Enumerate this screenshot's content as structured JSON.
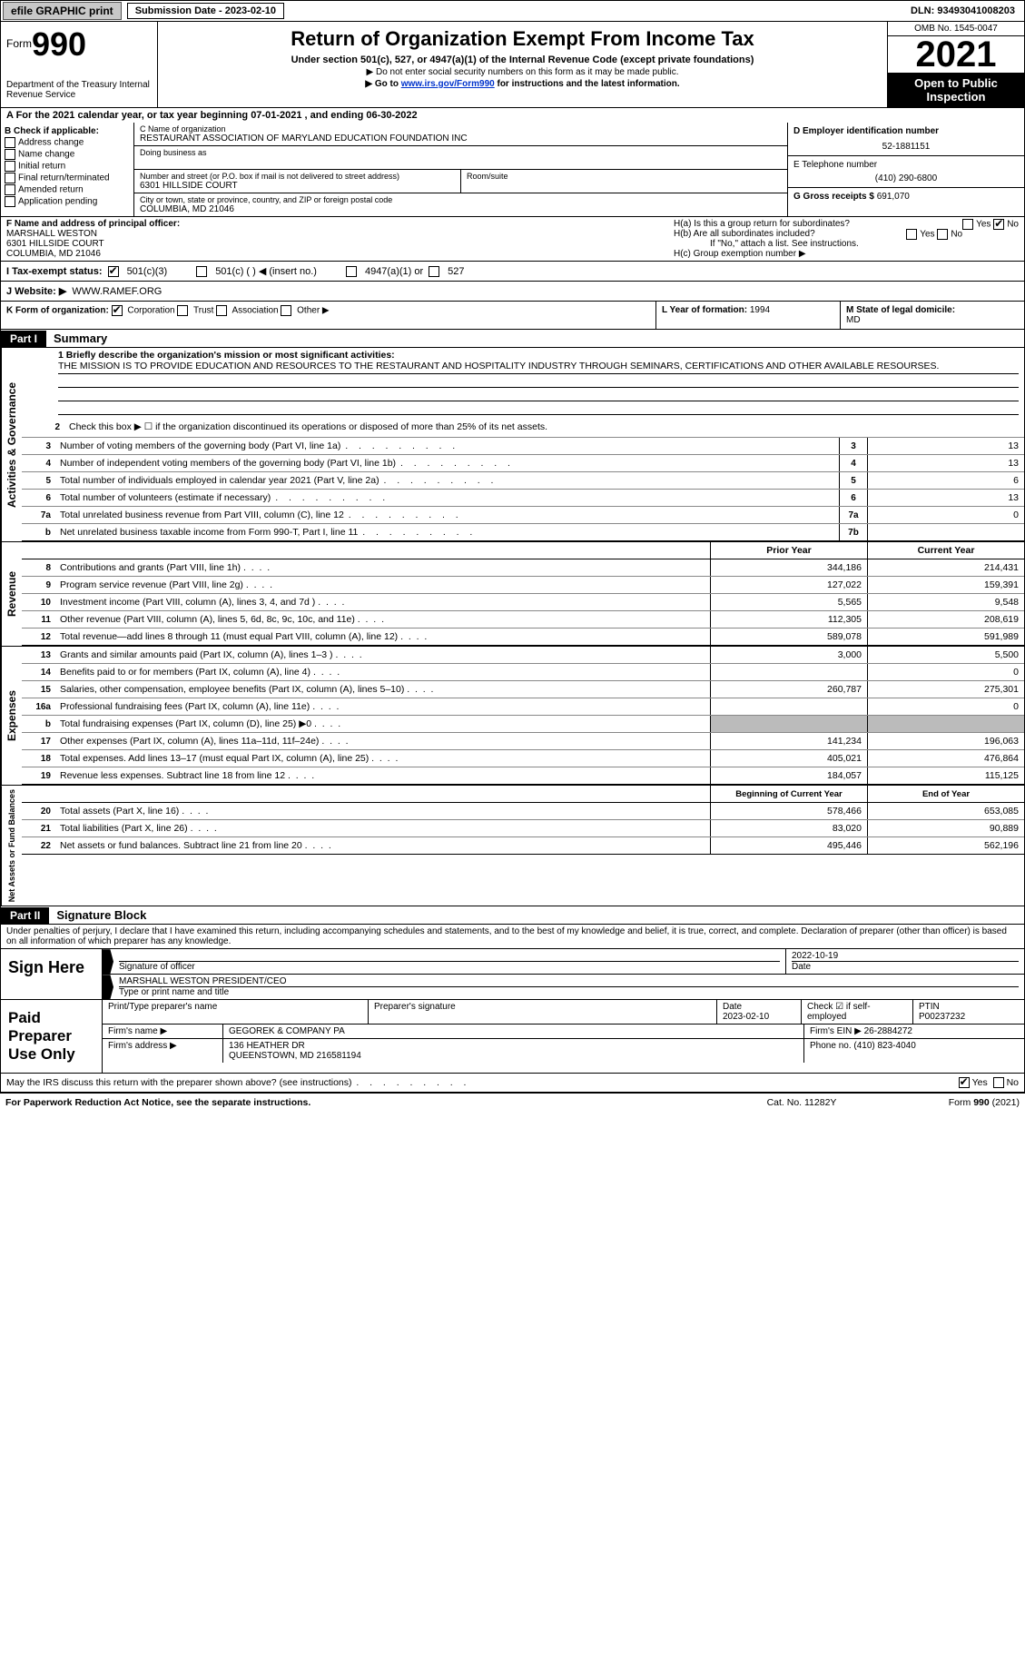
{
  "topbar": {
    "efile": "efile GRAPHIC print",
    "submission_label": "Submission Date - 2023-02-10",
    "dln": "DLN: 93493041008203"
  },
  "header": {
    "form_prefix": "Form",
    "form_num": "990",
    "dept": "Department of the Treasury\nInternal Revenue Service",
    "title": "Return of Organization Exempt From Income Tax",
    "sub1": "Under section 501(c), 527, or 4947(a)(1) of the Internal Revenue Code (except private foundations)",
    "sub2": "▶ Do not enter social security numbers on this form as it may be made public.",
    "sub3_pre": "▶ Go to ",
    "sub3_link": "www.irs.gov/Form990",
    "sub3_post": " for instructions and the latest information.",
    "omb": "OMB No. 1545-0047",
    "year": "2021",
    "open": "Open to Public Inspection"
  },
  "row_a": "A For the 2021 calendar year, or tax year beginning 07-01-2021   , and ending 06-30-2022",
  "section_b": {
    "label": "B Check if applicable:",
    "items": [
      "Address change",
      "Name change",
      "Initial return",
      "Final return/terminated",
      "Amended return",
      "Application pending"
    ]
  },
  "section_c": {
    "name_lbl": "C Name of organization",
    "name": "RESTAURANT ASSOCIATION OF MARYLAND EDUCATION FOUNDATION INC",
    "dba_lbl": "Doing business as",
    "addr_lbl": "Number and street (or P.O. box if mail is not delivered to street address)",
    "addr": "6301 HILLSIDE COURT",
    "room_lbl": "Room/suite",
    "city_lbl": "City or town, state or province, country, and ZIP or foreign postal code",
    "city": "COLUMBIA, MD  21046"
  },
  "section_d": {
    "ein_lbl": "D Employer identification number",
    "ein": "52-1881151",
    "tel_lbl": "E Telephone number",
    "tel": "(410) 290-6800",
    "gross_lbl": "G Gross receipts $",
    "gross": "691,070"
  },
  "section_f": {
    "lbl": "F  Name and address of principal officer:",
    "name": "MARSHALL WESTON",
    "addr1": "6301 HILLSIDE COURT",
    "addr2": "COLUMBIA, MD  21046"
  },
  "section_h": {
    "ha": "H(a)  Is this a group return for subordinates?",
    "hb": "H(b)  Are all subordinates included?",
    "hb_note": "If \"No,\" attach a list. See instructions.",
    "hc": "H(c)  Group exemption number ▶"
  },
  "row_i": {
    "lbl": "I    Tax-exempt status:",
    "opt1": "501(c)(3)",
    "opt2": "501(c) (  ) ◀ (insert no.)",
    "opt3": "4947(a)(1) or",
    "opt4": "527"
  },
  "row_j": {
    "lbl": "J   Website: ▶ ",
    "val": "WWW.RAMEF.ORG"
  },
  "row_k": {
    "lbl": "K Form of organization:",
    "opts": [
      "Corporation",
      "Trust",
      "Association",
      "Other ▶"
    ],
    "l_lbl": "L Year of formation: ",
    "l_val": "1994",
    "m_lbl": "M State of legal domicile: ",
    "m_val": "MD"
  },
  "part1": {
    "hdr": "Part I",
    "title": "Summary",
    "line1_lbl": "1   Briefly describe the organization's mission or most significant activities:",
    "mission": "THE MISSION IS TO PROVIDE EDUCATION AND RESOURCES TO THE RESTAURANT AND HOSPITALITY INDUSTRY THROUGH SEMINARS, CERTIFICATIONS AND OTHER AVAILABLE RESOURSES.",
    "line2": "Check this box ▶ ☐  if the organization discontinued its operations or disposed of more than 25% of its net assets."
  },
  "gov_lines": [
    {
      "n": "3",
      "d": "Number of voting members of the governing body (Part VI, line 1a)",
      "box": "3",
      "v": "13"
    },
    {
      "n": "4",
      "d": "Number of independent voting members of the governing body (Part VI, line 1b)",
      "box": "4",
      "v": "13"
    },
    {
      "n": "5",
      "d": "Total number of individuals employed in calendar year 2021 (Part V, line 2a)",
      "box": "5",
      "v": "6"
    },
    {
      "n": "6",
      "d": "Total number of volunteers (estimate if necessary)",
      "box": "6",
      "v": "13"
    },
    {
      "n": "7a",
      "d": "Total unrelated business revenue from Part VIII, column (C), line 12",
      "box": "7a",
      "v": "0"
    },
    {
      "n": "b",
      "d": "Net unrelated business taxable income from Form 990-T, Part I, line 11",
      "box": "7b",
      "v": ""
    }
  ],
  "columns": {
    "prior": "Prior Year",
    "current": "Current Year"
  },
  "revenue": [
    {
      "n": "8",
      "d": "Contributions and grants (Part VIII, line 1h)",
      "p": "344,186",
      "c": "214,431"
    },
    {
      "n": "9",
      "d": "Program service revenue (Part VIII, line 2g)",
      "p": "127,022",
      "c": "159,391"
    },
    {
      "n": "10",
      "d": "Investment income (Part VIII, column (A), lines 3, 4, and 7d )",
      "p": "5,565",
      "c": "9,548"
    },
    {
      "n": "11",
      "d": "Other revenue (Part VIII, column (A), lines 5, 6d, 8c, 9c, 10c, and 11e)",
      "p": "112,305",
      "c": "208,619"
    },
    {
      "n": "12",
      "d": "Total revenue—add lines 8 through 11 (must equal Part VIII, column (A), line 12)",
      "p": "589,078",
      "c": "591,989"
    }
  ],
  "expenses": [
    {
      "n": "13",
      "d": "Grants and similar amounts paid (Part IX, column (A), lines 1–3 )",
      "p": "3,000",
      "c": "5,500"
    },
    {
      "n": "14",
      "d": "Benefits paid to or for members (Part IX, column (A), line 4)",
      "p": "",
      "c": "0"
    },
    {
      "n": "15",
      "d": "Salaries, other compensation, employee benefits (Part IX, column (A), lines 5–10)",
      "p": "260,787",
      "c": "275,301"
    },
    {
      "n": "16a",
      "d": "Professional fundraising fees (Part IX, column (A), line 11e)",
      "p": "",
      "c": "0"
    },
    {
      "n": "b",
      "d": "Total fundraising expenses (Part IX, column (D), line 25) ▶0",
      "p": "grey",
      "c": "grey"
    },
    {
      "n": "17",
      "d": "Other expenses (Part IX, column (A), lines 11a–11d, 11f–24e)",
      "p": "141,234",
      "c": "196,063"
    },
    {
      "n": "18",
      "d": "Total expenses. Add lines 13–17 (must equal Part IX, column (A), line 25)",
      "p": "405,021",
      "c": "476,864"
    },
    {
      "n": "19",
      "d": "Revenue less expenses. Subtract line 18 from line 12",
      "p": "184,057",
      "c": "115,125"
    }
  ],
  "net_hdr": {
    "prior": "Beginning of Current Year",
    "current": "End of Year"
  },
  "net": [
    {
      "n": "20",
      "d": "Total assets (Part X, line 16)",
      "p": "578,466",
      "c": "653,085"
    },
    {
      "n": "21",
      "d": "Total liabilities (Part X, line 26)",
      "p": "83,020",
      "c": "90,889"
    },
    {
      "n": "22",
      "d": "Net assets or fund balances. Subtract line 21 from line 20",
      "p": "495,446",
      "c": "562,196"
    }
  ],
  "sidelabels": {
    "gov": "Activities & Governance",
    "rev": "Revenue",
    "exp": "Expenses",
    "net": "Net Assets or Fund Balances"
  },
  "part2": {
    "hdr": "Part II",
    "title": "Signature Block",
    "decl": "Under penalties of perjury, I declare that I have examined this return, including accompanying schedules and statements, and to the best of my knowledge and belief, it is true, correct, and complete. Declaration of preparer (other than officer) is based on all information of which preparer has any knowledge."
  },
  "sign": {
    "here": "Sign Here",
    "sig_lbl": "Signature of officer",
    "date": "2022-10-19",
    "date_lbl": "Date",
    "name": "MARSHALL WESTON  PRESIDENT/CEO",
    "name_lbl": "Type or print name and title"
  },
  "preparer": {
    "hdr": "Paid Preparer Use Only",
    "r1": {
      "a": "Print/Type preparer's name",
      "b": "Preparer's signature",
      "c_lbl": "Date",
      "c": "2023-02-10",
      "d": "Check ☑ if self-employed",
      "e_lbl": "PTIN",
      "e": "P00237232"
    },
    "r2": {
      "a": "Firm's name    ▶",
      "b": "GEGOREK & COMPANY PA",
      "c": "Firm's EIN ▶",
      "d": "26-2884272"
    },
    "r3": {
      "a": "Firm's address ▶",
      "b": "136 HEATHER DR",
      "c": "Phone no. (410) 823-4040"
    },
    "r3b": "QUEENSTOWN, MD  216581194"
  },
  "discuss": "May the IRS discuss this return with the preparer shown above? (see instructions)",
  "footer": {
    "left": "For Paperwork Reduction Act Notice, see the separate instructions.",
    "mid": "Cat. No. 11282Y",
    "right": "Form 990 (2021)"
  }
}
